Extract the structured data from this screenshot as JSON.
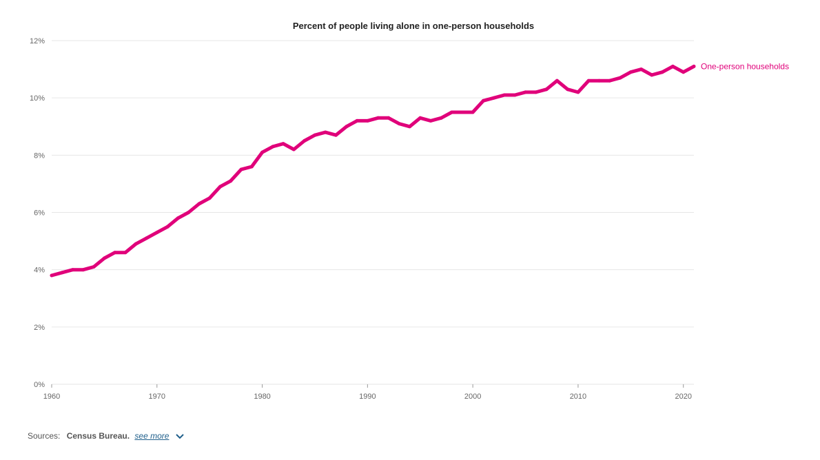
{
  "chart_data": {
    "type": "line",
    "title": "Percent of people living alone in one-person households",
    "xlabel": "",
    "ylabel": "",
    "xlim": [
      1960,
      2021
    ],
    "ylim": [
      0,
      12
    ],
    "x_ticks": [
      "1960",
      "1970",
      "1980",
      "1990",
      "2000",
      "2010",
      "2020"
    ],
    "y_ticks": [
      "0%",
      "2%",
      "4%",
      "6%",
      "8%",
      "10%",
      "12%"
    ],
    "grid": "horizontal",
    "color": "#e0007a",
    "series": [
      {
        "name": "One-person households",
        "x": [
          1960,
          1961,
          1962,
          1963,
          1964,
          1965,
          1966,
          1967,
          1968,
          1969,
          1970,
          1971,
          1972,
          1973,
          1974,
          1975,
          1976,
          1977,
          1978,
          1979,
          1980,
          1981,
          1982,
          1983,
          1984,
          1985,
          1986,
          1987,
          1988,
          1989,
          1990,
          1991,
          1992,
          1993,
          1994,
          1995,
          1996,
          1997,
          1998,
          1999,
          2000,
          2001,
          2002,
          2003,
          2004,
          2005,
          2006,
          2007,
          2008,
          2009,
          2010,
          2011,
          2012,
          2013,
          2014,
          2015,
          2016,
          2017,
          2018,
          2019,
          2020,
          2021
        ],
        "values": [
          3.8,
          3.9,
          4.0,
          4.0,
          4.1,
          4.4,
          4.6,
          4.6,
          4.9,
          5.1,
          5.3,
          5.5,
          5.8,
          6.0,
          6.3,
          6.5,
          6.9,
          7.1,
          7.5,
          7.6,
          8.1,
          8.3,
          8.4,
          8.2,
          8.5,
          8.7,
          8.8,
          8.7,
          9.0,
          9.2,
          9.2,
          9.3,
          9.3,
          9.1,
          9.0,
          9.3,
          9.2,
          9.3,
          9.5,
          9.5,
          9.5,
          9.9,
          10.0,
          10.1,
          10.1,
          10.2,
          10.2,
          10.3,
          10.6,
          10.3,
          10.2,
          10.6,
          10.6,
          10.6,
          10.7,
          10.9,
          11.0,
          10.8,
          10.9,
          11.1,
          10.9,
          11.1
        ]
      }
    ]
  },
  "footer": {
    "sources_prefix": "Sources:",
    "source_name": "Census Bureau.",
    "see_more": "see more"
  }
}
